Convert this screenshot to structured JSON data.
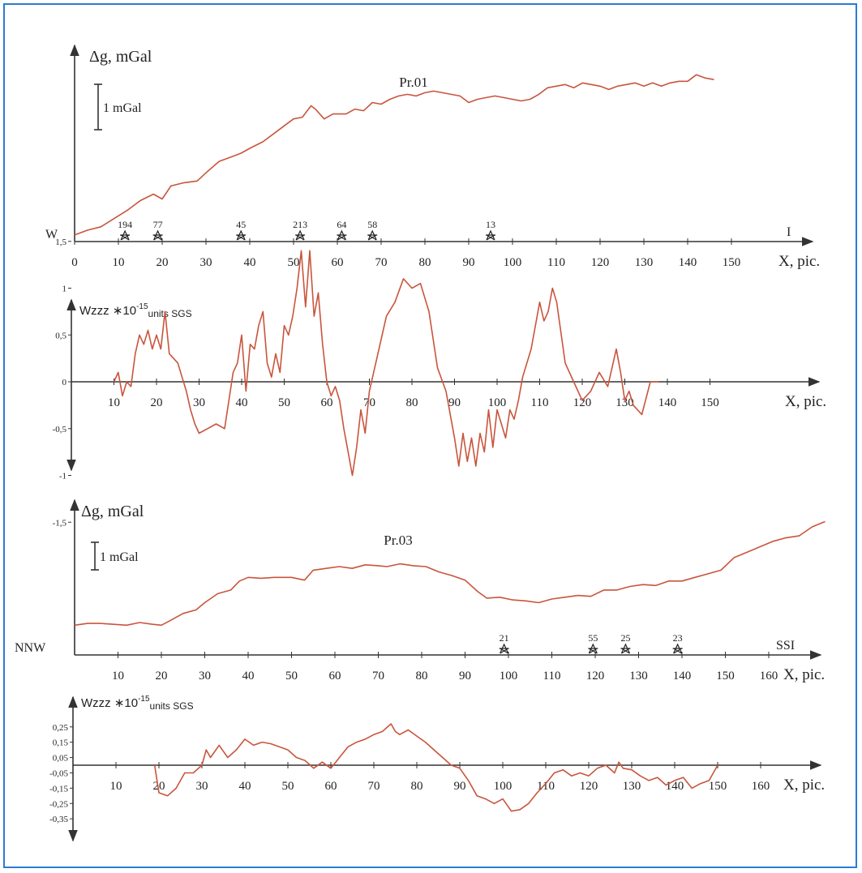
{
  "chart_data": [
    {
      "type": "line",
      "profile": "Pr.01",
      "title": "Pr.01",
      "ylabel": "Δg, mGal",
      "xlabel": "X, pic.",
      "scale_bar": "1 mGal",
      "left_label": "W",
      "right_label": "I",
      "xticks": [
        0,
        10,
        20,
        30,
        40,
        50,
        60,
        70,
        80,
        90,
        100,
        110,
        120,
        130,
        140,
        150
      ],
      "xlim": [
        0,
        158
      ],
      "ylim": [
        -1.6,
        4.1
      ],
      "markers": [
        {
          "x": 11.5,
          "label": "194"
        },
        {
          "x": 19,
          "label": "77"
        },
        {
          "x": 38,
          "label": "45"
        },
        {
          "x": 51.5,
          "label": "213"
        },
        {
          "x": 61,
          "label": "64"
        },
        {
          "x": 68,
          "label": "58"
        },
        {
          "x": 95,
          "label": "13"
        }
      ],
      "x": [
        0,
        3,
        6,
        9,
        12,
        15,
        18,
        20,
        22,
        25,
        28,
        30,
        33,
        36,
        38,
        40,
        43,
        46,
        48,
        50,
        52,
        54,
        55,
        57,
        59,
        62,
        64,
        66,
        68,
        70,
        72,
        74,
        76,
        78,
        80,
        82,
        84,
        86,
        88,
        90,
        92,
        94,
        96,
        98,
        100,
        102,
        104,
        106,
        108,
        110,
        112,
        114,
        116,
        118,
        120,
        122,
        124,
        126,
        128,
        130,
        132,
        134,
        136,
        138,
        140,
        142,
        144,
        146
      ],
      "values": [
        -1.35,
        -1.2,
        -1.1,
        -0.85,
        -0.6,
        -0.3,
        -0.1,
        -0.25,
        0.15,
        0.25,
        0.3,
        0.55,
        0.9,
        1.05,
        1.15,
        1.3,
        1.5,
        1.8,
        2.0,
        2.2,
        2.25,
        2.6,
        2.5,
        2.2,
        2.35,
        2.35,
        2.5,
        2.45,
        2.7,
        2.65,
        2.8,
        2.9,
        2.95,
        2.9,
        3.0,
        3.05,
        3.0,
        2.95,
        2.9,
        2.7,
        2.8,
        2.85,
        2.9,
        2.85,
        2.8,
        2.75,
        2.8,
        2.95,
        3.15,
        3.2,
        3.25,
        3.15,
        3.3,
        3.25,
        3.2,
        3.1,
        3.2,
        3.25,
        3.3,
        3.2,
        3.3,
        3.2,
        3.3,
        3.35,
        3.35,
        3.55,
        3.45,
        3.4
      ]
    },
    {
      "type": "line",
      "profile": "Pr.01",
      "ylabel": "Wzzz",
      "ylabel_mult": "∗10",
      "ylabel_exp": "-15",
      "ylabel_units": "units SGS",
      "xlabel": "X, pic.",
      "xticks": [
        10,
        20,
        30,
        40,
        50,
        60,
        70,
        80,
        90,
        100,
        110,
        120,
        130,
        140,
        150
      ],
      "yticks": [
        "1,5",
        "1",
        "0,5",
        "0",
        "-0,5",
        "-1",
        "-1,5"
      ],
      "ytick_values": [
        1.5,
        1,
        0.5,
        0,
        -0.5,
        -1,
        -1.5
      ],
      "xlim": [
        0,
        158
      ],
      "ylim": [
        -1.8,
        1.8
      ],
      "x": [
        10,
        11,
        12,
        13,
        14,
        15,
        16,
        17,
        18,
        19,
        20,
        21,
        22,
        23,
        24,
        25,
        26,
        27,
        28,
        29,
        30,
        32,
        34,
        36,
        38,
        39,
        40,
        41,
        42,
        43,
        44,
        45,
        46,
        47,
        48,
        49,
        50,
        51,
        52,
        53,
        54,
        55,
        56,
        57,
        58,
        59,
        60,
        61,
        62,
        63,
        64,
        65,
        66,
        67,
        68,
        69,
        70,
        72,
        74,
        76,
        78,
        80,
        82,
        84,
        86,
        88,
        90,
        91,
        92,
        93,
        94,
        95,
        96,
        97,
        98,
        99,
        100,
        101,
        102,
        103,
        104,
        105,
        106,
        108,
        110,
        111,
        112,
        113,
        114,
        116,
        118,
        120,
        122,
        124,
        126,
        128,
        129,
        130,
        131,
        132,
        134,
        136,
        138
      ],
      "values": [
        0.0,
        0.1,
        -0.15,
        0.0,
        -0.05,
        0.3,
        0.5,
        0.4,
        0.55,
        0.35,
        0.5,
        0.35,
        0.75,
        0.3,
        0.25,
        0.2,
        0.05,
        -0.1,
        -0.3,
        -0.45,
        -0.55,
        -0.5,
        -0.45,
        -0.5,
        0.1,
        0.2,
        0.5,
        -0.1,
        0.4,
        0.35,
        0.6,
        0.75,
        0.2,
        0.05,
        0.3,
        0.1,
        0.6,
        0.5,
        0.7,
        1.0,
        1.4,
        0.8,
        1.4,
        0.7,
        0.95,
        0.4,
        0.0,
        -0.15,
        -0.05,
        -0.2,
        -0.5,
        -0.75,
        -1.0,
        -0.7,
        -0.3,
        -0.55,
        -0.1,
        0.3,
        0.7,
        0.85,
        1.1,
        1.0,
        1.05,
        0.75,
        0.15,
        -0.1,
        -0.6,
        -0.9,
        -0.55,
        -0.85,
        -0.6,
        -0.9,
        -0.55,
        -0.75,
        -0.3,
        -0.7,
        -0.3,
        -0.45,
        -0.6,
        -0.3,
        -0.4,
        -0.2,
        0.05,
        0.35,
        0.85,
        0.65,
        0.75,
        1.0,
        0.85,
        0.2,
        0.0,
        -0.2,
        -0.1,
        0.1,
        -0.05,
        0.35,
        0.1,
        -0.2,
        -0.1,
        -0.25,
        -0.35,
        0.0,
        0.0
      ]
    },
    {
      "type": "line",
      "profile": "Pr.03",
      "title": "Pr.03",
      "ylabel": "Δg, mGal",
      "xlabel": "X, pic.",
      "scale_bar": "1 mGal",
      "left_label": "NNW",
      "right_label": "SSI",
      "xticks": [
        10,
        20,
        30,
        40,
        50,
        60,
        70,
        80,
        90,
        100,
        110,
        120,
        130,
        140,
        150,
        160
      ],
      "xlim": [
        0,
        170
      ],
      "ylim": [
        -0.8,
        7.2
      ],
      "markers": [
        {
          "x": 99,
          "label": "21"
        },
        {
          "x": 119.5,
          "label": "55"
        },
        {
          "x": 127,
          "label": "25"
        },
        {
          "x": 139,
          "label": "23"
        }
      ],
      "x": [
        0,
        3,
        6,
        9,
        12,
        15,
        18,
        20,
        22,
        25,
        28,
        30,
        33,
        36,
        38,
        40,
        43,
        46,
        50,
        53,
        55,
        58,
        61,
        64,
        67,
        70,
        72,
        75,
        78,
        81,
        84,
        87,
        90,
        93,
        95,
        98,
        101,
        104,
        107,
        110,
        113,
        116,
        119,
        122,
        125,
        128,
        131,
        134,
        137,
        140,
        143,
        146,
        149,
        152,
        155,
        158,
        161,
        164,
        167,
        170,
        173
      ],
      "values": [
        0.85,
        0.95,
        0.95,
        0.9,
        0.85,
        1.0,
        0.9,
        0.85,
        1.1,
        1.5,
        1.7,
        2.1,
        2.6,
        2.8,
        3.3,
        3.5,
        3.45,
        3.5,
        3.5,
        3.35,
        3.9,
        4.0,
        4.1,
        4.0,
        4.2,
        4.15,
        4.1,
        4.25,
        4.15,
        4.1,
        3.8,
        3.6,
        3.35,
        2.7,
        2.35,
        2.4,
        2.25,
        2.2,
        2.1,
        2.3,
        2.4,
        2.5,
        2.45,
        2.8,
        2.8,
        3.0,
        3.1,
        3.05,
        3.3,
        3.3,
        3.5,
        3.7,
        3.9,
        4.6,
        4.9,
        5.2,
        5.5,
        5.7,
        5.8,
        6.3,
        6.6
      ]
    },
    {
      "type": "line",
      "profile": "Pr.03",
      "ylabel": "Wzzz",
      "ylabel_mult": "∗10",
      "ylabel_exp": "-15",
      "ylabel_units": "units SGS",
      "xlabel": "X, pic.",
      "xticks": [
        10,
        20,
        30,
        40,
        50,
        60,
        70,
        80,
        90,
        100,
        110,
        120,
        130,
        140,
        150,
        160
      ],
      "yticks": [
        "0,25",
        "0,15",
        "0,05",
        "-0,05",
        "-0,15",
        "-0,25",
        "-0,35"
      ],
      "ytick_values": [
        0.25,
        0.15,
        0.05,
        -0.05,
        -0.15,
        -0.25,
        -0.35
      ],
      "xlim": [
        0,
        170
      ],
      "ylim": [
        -0.43,
        0.4
      ],
      "x": [
        19,
        20,
        22,
        24,
        26,
        28,
        30,
        31,
        32,
        34,
        36,
        38,
        40,
        42,
        44,
        46,
        48,
        50,
        52,
        54,
        56,
        58,
        60,
        62,
        64,
        66,
        68,
        70,
        72,
        74,
        75,
        76,
        78,
        80,
        82,
        84,
        86,
        88,
        90,
        92,
        94,
        96,
        98,
        100,
        102,
        104,
        106,
        108,
        110,
        112,
        114,
        116,
        118,
        120,
        122,
        124,
        126,
        127,
        128,
        130,
        132,
        134,
        136,
        138,
        140,
        142,
        144,
        146,
        148,
        150
      ],
      "values": [
        0.0,
        -0.18,
        -0.2,
        -0.15,
        -0.05,
        -0.05,
        0.0,
        0.1,
        0.05,
        0.13,
        0.05,
        0.1,
        0.17,
        0.13,
        0.15,
        0.14,
        0.12,
        0.1,
        0.05,
        0.03,
        -0.02,
        0.02,
        -0.02,
        0.05,
        0.12,
        0.15,
        0.17,
        0.2,
        0.22,
        0.27,
        0.22,
        0.2,
        0.23,
        0.19,
        0.15,
        0.1,
        0.05,
        0.0,
        -0.02,
        -0.1,
        -0.2,
        -0.22,
        -0.25,
        -0.22,
        -0.3,
        -0.29,
        -0.25,
        -0.18,
        -0.12,
        -0.05,
        -0.03,
        -0.07,
        -0.05,
        -0.07,
        -0.02,
        0.0,
        -0.05,
        0.02,
        -0.02,
        -0.03,
        -0.07,
        -0.1,
        -0.08,
        -0.13,
        -0.1,
        -0.08,
        -0.15,
        -0.12,
        -0.1,
        0.0
      ]
    }
  ]
}
